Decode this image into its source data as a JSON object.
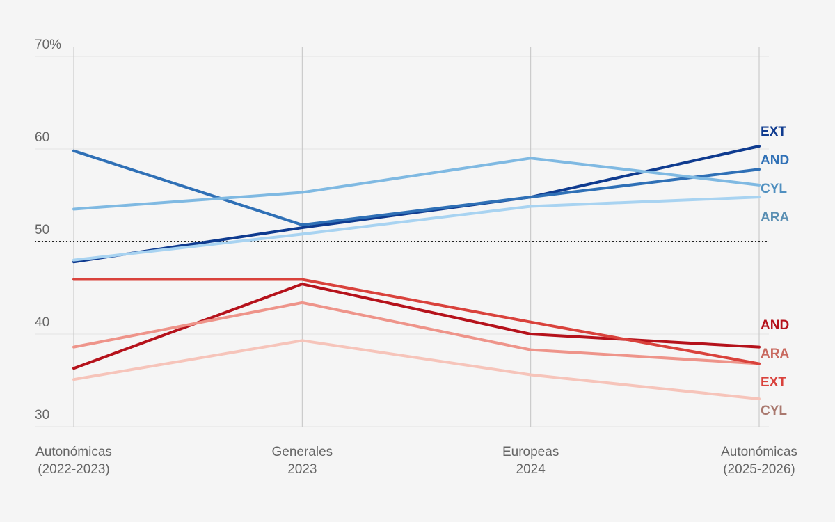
{
  "chart_data": {
    "type": "line",
    "categories": [
      [
        "Autonómicas",
        "(2022-2023)"
      ],
      [
        "Generales",
        "2023"
      ],
      [
        "Europeas",
        "2024"
      ],
      [
        "Autonómicas",
        "(2025-2026)"
      ]
    ],
    "ylim": [
      30,
      70
    ],
    "yticks": [
      30,
      40,
      50,
      60,
      {
        "value": 70,
        "label": "70%"
      }
    ],
    "reference_line": 50,
    "grid": true,
    "series": [
      {
        "name": "EXT",
        "color": "#0f3b8f",
        "values": [
          47.8,
          51.5,
          54.8,
          60.3
        ]
      },
      {
        "name": "AND",
        "color": "#2f70b6",
        "values": [
          59.8,
          51.8,
          54.8,
          57.8
        ]
      },
      {
        "name": "CYL",
        "color": "#7fb9e2",
        "label_color": "#4f8fbf",
        "values": [
          53.5,
          55.3,
          59.0,
          56.1
        ]
      },
      {
        "name": "ARA",
        "color": "#a8d3f1",
        "label_color": "#5a8fb3",
        "values": [
          48.0,
          50.8,
          53.8,
          54.8
        ]
      },
      {
        "name": "AND",
        "color": "#b5121b",
        "values": [
          36.3,
          45.4,
          40.0,
          38.6
        ]
      },
      {
        "name": "ARA",
        "color": "#ee948a",
        "label_color": "#c96a60",
        "values": [
          38.6,
          43.4,
          38.3,
          36.8
        ]
      },
      {
        "name": "EXT",
        "color": "#d9423c",
        "values": [
          45.9,
          45.9,
          41.3,
          36.8
        ]
      },
      {
        "name": "CYL",
        "color": "#f6c4ba",
        "label_color": "#a9786e",
        "values": [
          35.1,
          39.3,
          35.6,
          33.0
        ]
      }
    ]
  }
}
